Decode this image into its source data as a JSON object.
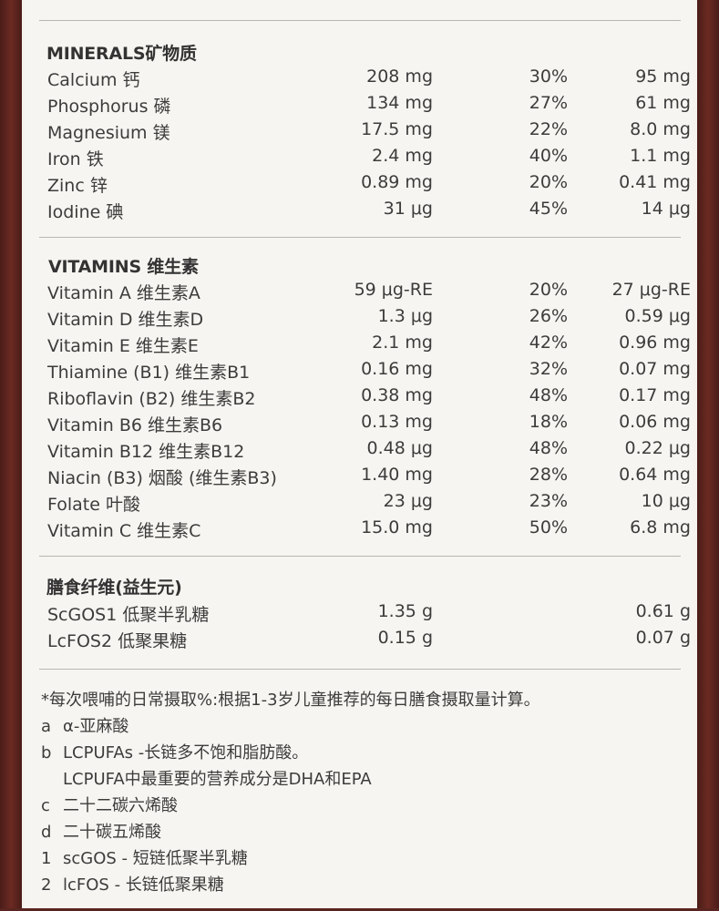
{
  "minerals": {
    "title": "MINERALS矿物质",
    "rows": [
      {
        "name": "Calcium 钙",
        "amount": "208 mg",
        "percent": "30%",
        "per100": "95 mg"
      },
      {
        "name": "Phosphorus 磷",
        "amount": "134 mg",
        "percent": "27%",
        "per100": "61 mg"
      },
      {
        "name": "Magnesium 镁",
        "amount": "17.5 mg",
        "percent": "22%",
        "per100": "8.0 mg"
      },
      {
        "name": "Iron 铁",
        "amount": "2.4 mg",
        "percent": "40%",
        "per100": "1.1 mg"
      },
      {
        "name": "Zinc 锌",
        "amount": "0.89 mg",
        "percent": "20%",
        "per100": "0.41 mg"
      },
      {
        "name": "Iodine 碘",
        "amount": "31 μg",
        "percent": "45%",
        "per100": "14 μg"
      }
    ]
  },
  "vitamins": {
    "title": "VITAMINS 维生素",
    "rows": [
      {
        "name": "Vitamin A 维生素A",
        "amount": "59 μg-RE",
        "percent": "20%",
        "per100": "27 μg-RE"
      },
      {
        "name": "Vitamin D 维生素D",
        "amount": "1.3 μg",
        "percent": "26%",
        "per100": "0.59 μg"
      },
      {
        "name": "Vitamin E 维生素E",
        "amount": "2.1 mg",
        "percent": "42%",
        "per100": "0.96 mg"
      },
      {
        "name": "Thiamine (B1) 维生素B1",
        "amount": "0.16 mg",
        "percent": "32%",
        "per100": "0.07 mg"
      },
      {
        "name": "Riboflavin (B2) 维生素B2",
        "amount": "0.38 mg",
        "percent": "48%",
        "per100": "0.17 mg"
      },
      {
        "name": "Vitamin B6 维生素B6",
        "amount": "0.13 mg",
        "percent": "18%",
        "per100": "0.06 mg"
      },
      {
        "name": "Vitamin B12 维生素B12",
        "amount": "0.48 μg",
        "percent": "48%",
        "per100": "0.22 μg"
      },
      {
        "name": "Niacin (B3) 烟酸 (维生素B3)",
        "amount": "1.40 mg",
        "percent": "28%",
        "per100": "0.64 mg"
      },
      {
        "name": "Folate 叶酸",
        "amount": "23 μg",
        "percent": "23%",
        "per100": "10 μg"
      },
      {
        "name": "Vitamin C 维生素C",
        "amount": "15.0 mg",
        "percent": "50%",
        "per100": "6.8 mg"
      }
    ]
  },
  "fiber": {
    "title": "膳食纤维(益生元)",
    "rows": [
      {
        "name": "ScGOS1 低聚半乳糖",
        "amount": "1.35 g",
        "per100": "0.61 g"
      },
      {
        "name": "LcFOS2 低聚果糖",
        "amount": "0.15 g",
        "per100": "0.07 g"
      }
    ]
  },
  "footnotes": {
    "star": "*每次喂哺的日常摄取%:根据1-3岁儿童推荐的每日膳食摄取量计算。",
    "items": [
      {
        "key": "a",
        "text": "α-亚麻酸"
      },
      {
        "key": "b",
        "text": "LCPUFAs -长链多不饱和脂肪酸。"
      },
      {
        "key": "",
        "text": "LCPUFA中最重要的营养成分是DHA和EPA"
      },
      {
        "key": "c",
        "text": "二十二碳六烯酸"
      },
      {
        "key": "d",
        "text": "二十碳五烯酸"
      },
      {
        "key": "1",
        "text": "scGOS - 短链低聚半乳糖"
      },
      {
        "key": "2",
        "text": "lcFOS - 长链低聚果糖"
      }
    ]
  }
}
